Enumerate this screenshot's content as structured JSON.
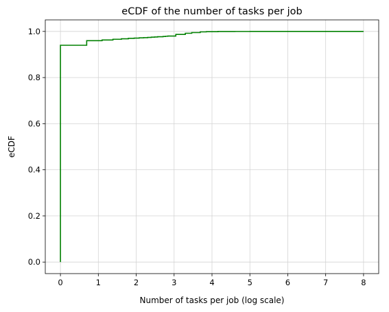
{
  "chart_data": {
    "type": "line",
    "title": "eCDF of the number of tasks per job",
    "xlabel": "Number of tasks per job (log scale)",
    "ylabel": "eCDF",
    "xlim": [
      -0.4,
      8.4
    ],
    "ylim": [
      -0.05,
      1.05
    ],
    "xticks": [
      0,
      1,
      2,
      3,
      4,
      5,
      6,
      7,
      8
    ],
    "xtick_labels": [
      "0",
      "1",
      "2",
      "3",
      "4",
      "5",
      "6",
      "7",
      "8"
    ],
    "yticks": [
      0.0,
      0.2,
      0.4,
      0.6,
      0.8,
      1.0
    ],
    "ytick_labels": [
      "0.0",
      "0.2",
      "0.4",
      "0.6",
      "0.8",
      "1.0"
    ],
    "grid": true,
    "step": "post",
    "color": "#008000",
    "series": [
      {
        "x": [
          0,
          0,
          0.693,
          1.099,
          1.386,
          1.609,
          1.792,
          1.946,
          2.079,
          2.197,
          2.303,
          2.398,
          2.485,
          2.565,
          2.639,
          2.708,
          2.773,
          2.833,
          2.89,
          3.045,
          3.296,
          3.466,
          3.689,
          3.85,
          4.159,
          4.605,
          5.01,
          8.0
        ],
        "y": [
          0.0,
          0.94,
          0.96,
          0.963,
          0.966,
          0.968,
          0.97,
          0.971,
          0.972,
          0.973,
          0.974,
          0.975,
          0.976,
          0.977,
          0.977,
          0.978,
          0.979,
          0.98,
          0.98,
          0.987,
          0.992,
          0.995,
          0.998,
          0.999,
          0.9995,
          0.9998,
          1.0,
          1.0
        ]
      }
    ]
  }
}
